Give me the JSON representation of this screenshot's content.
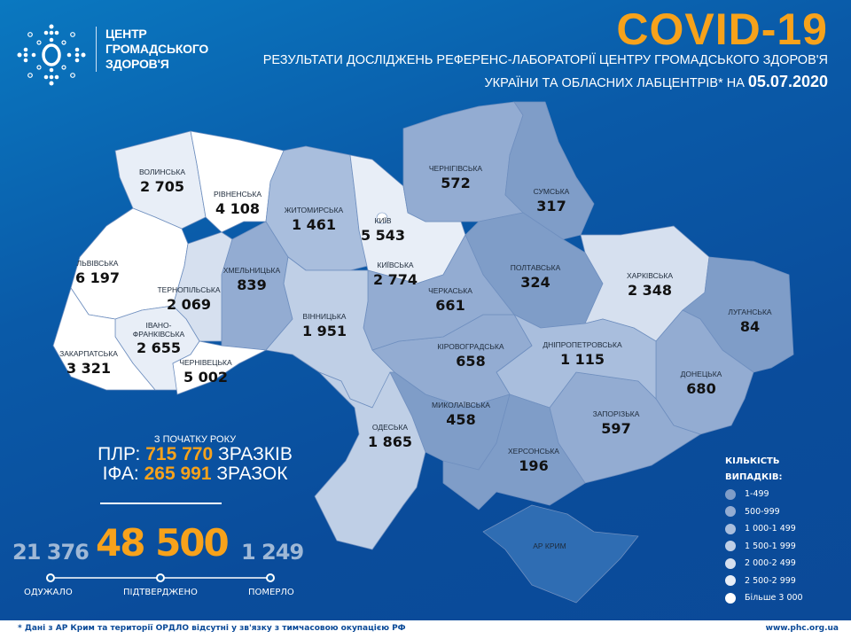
{
  "header": {
    "org_lines": [
      "ЦЕНТР",
      "ГРОМАДСЬКОГО",
      "ЗДОРОВ'Я"
    ],
    "title": "COVID-19",
    "subtitle_line1": "РЕЗУЛЬТАТИ ДОСЛІДЖЕНЬ РЕФЕРЕНС-ЛАБОРАТОРІЇ ЦЕНТРУ ГРОМАДСЬКОГО ЗДОРОВ'Я",
    "subtitle_line2": "УКРАЇНИ ТА ОБЛАСНИХ ЛАБЦЕНТРІВ* НА",
    "date": "05.07.2020",
    "title_color": "#f7a21b"
  },
  "regions": [
    {
      "name": "ВОЛИНСЬКА",
      "cases": "2 705",
      "value": 2705
    },
    {
      "name": "РІВНЕНСЬКА",
      "cases": "4 108",
      "value": 4108
    },
    {
      "name": "ЛЬВІВСЬКА",
      "cases": "6 197",
      "value": 6197
    },
    {
      "name": "ТЕРНОПІЛЬСЬКА",
      "cases": "2 069",
      "value": 2069
    },
    {
      "name": "ХМЕЛЬНИЦЬКА",
      "cases": "839",
      "value": 839
    },
    {
      "name": "ЖИТОМИРСЬКА",
      "cases": "1 461",
      "value": 1461
    },
    {
      "name": "КИЇВСЬКА",
      "cases": "2 774",
      "value": 2774
    },
    {
      "name": "ЧЕРНІГІВСЬКА",
      "cases": "572",
      "value": 572
    },
    {
      "name": "СУМСЬКА",
      "cases": "317",
      "value": 317
    },
    {
      "name": "ПОЛТАВСЬКА",
      "cases": "324",
      "value": 324
    },
    {
      "name": "ХАРКІВСЬКА",
      "cases": "2 348",
      "value": 2348
    },
    {
      "name": "ЛУГАНСЬКА",
      "cases": "84",
      "value": 84
    },
    {
      "name": "ДОНЕЦЬКА",
      "cases": "680",
      "value": 680
    },
    {
      "name": "ЗАПОРІЗЬКА",
      "cases": "597",
      "value": 597
    },
    {
      "name": "ДНІПРОПЕТРОВСЬКА",
      "cases": "1 115",
      "value": 1115
    },
    {
      "name": "КІРОВОГРАДСЬКА",
      "cases": "658",
      "value": 658
    },
    {
      "name": "ЧЕРКАСЬКА",
      "cases": "661",
      "value": 661
    },
    {
      "name": "ВІННИЦЬКА",
      "cases": "1 951",
      "value": 1951
    },
    {
      "name": "ОДЕСЬКА",
      "cases": "1 865",
      "value": 1865
    },
    {
      "name": "МИКОЛАЇВСЬКА",
      "cases": "458",
      "value": 458
    },
    {
      "name": "ХЕРСОНСЬКА",
      "cases": "196",
      "value": 196
    },
    {
      "name": "АР КРИМ",
      "cases": "",
      "value": null
    },
    {
      "name": "ІВАНО-ФРАНКІВСЬКА",
      "name_line1": "ІВАНО-",
      "name_line2": "ФРАНКІВСЬКА",
      "cases": "2 655",
      "value": 2655
    },
    {
      "name": "ЧЕРНІВЕЦЬКА",
      "cases": "5 002",
      "value": 5002
    },
    {
      "name": "ЗАКАРПАТСЬКА",
      "cases": "3 321",
      "value": 3321
    },
    {
      "name": "КИЇВ",
      "cases": "5 543",
      "value": 5543
    }
  ],
  "tests": {
    "since_label": "З ПОЧАТКУ РОКУ",
    "pcr_label": "ПЛР:",
    "pcr_value": "715 770",
    "pcr_unit": "ЗРАЗКІВ",
    "elisa_label": "ІФА:",
    "elisa_value": "265 991",
    "elisa_unit": "ЗРАЗОК"
  },
  "totals": {
    "recovered": "21 376",
    "recovered_label": "ОДУЖАЛО",
    "confirmed": "48 500",
    "confirmed_label": "ПІДТВЕРДЖЕНО",
    "deaths": "1 249",
    "deaths_label": "ПОМЕРЛО"
  },
  "legend": {
    "title1": "КІЛЬКІСТЬ",
    "title2": "ВИПАДКІВ:",
    "items": [
      {
        "label": "1-499",
        "min": 1,
        "max": 499,
        "color": "#7f9dc8"
      },
      {
        "label": "500-999",
        "min": 500,
        "max": 999,
        "color": "#93acd2"
      },
      {
        "label": "1 000-1 499",
        "min": 1000,
        "max": 1499,
        "color": "#a9bedd"
      },
      {
        "label": "1 500-1 999",
        "min": 1500,
        "max": 1999,
        "color": "#bfcfe6"
      },
      {
        "label": "2 000-2 499",
        "min": 2000,
        "max": 2499,
        "color": "#d6e0ef"
      },
      {
        "label": "2 500-2 999",
        "min": 2500,
        "max": 2999,
        "color": "#e8eef7"
      },
      {
        "label": "Більше 3 000",
        "min": 3000,
        "max": 999999,
        "color": "#ffffff"
      }
    ],
    "no_data_color": "#2f6db3"
  },
  "footer": {
    "note": "* Дані з АР Крим та території ОРДЛО відсутні у зв'язку з тимчасовою окупацією РФ",
    "site": "www.phc.org.ua"
  }
}
